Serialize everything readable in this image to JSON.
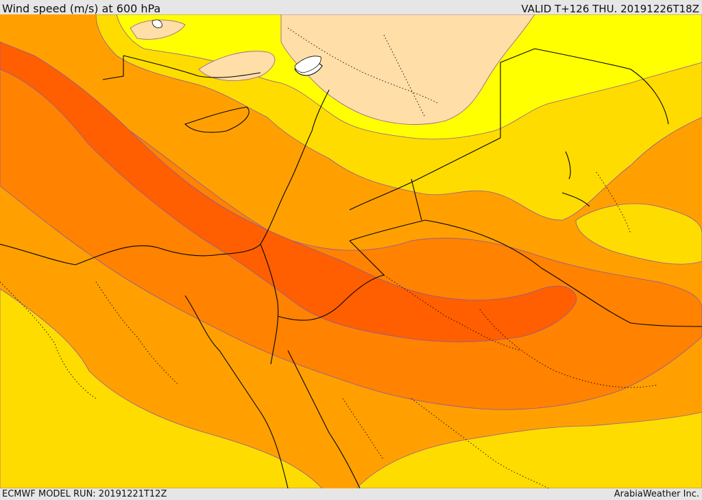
{
  "header": {
    "title": "Wind speed (m/s) at 600 hPa",
    "valid": "VALID T+126 THU. 20191226T18Z"
  },
  "footer": {
    "model_run": "ECMWF MODEL RUN: 20191221T12Z",
    "credit": "ArabiaWeather Inc."
  },
  "map": {
    "field": "wind-speed-600hPa",
    "palette": {
      "lowest": "#ffdea8",
      "low": "#ffff00",
      "mid_low": "#ffdc00",
      "mid": "#ffa000",
      "mid_high": "#ff8200",
      "high": "#ff5f00",
      "sea": "#ffffff",
      "contour": "#8a5aa0",
      "border": "#000000"
    }
  }
}
